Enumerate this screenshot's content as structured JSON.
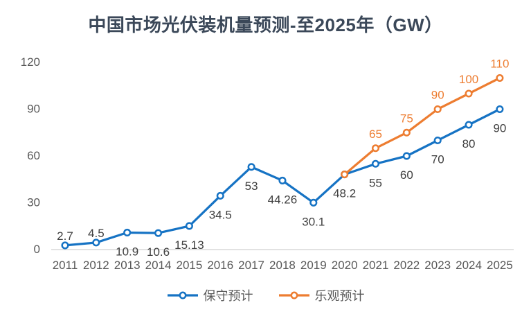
{
  "chart_data": {
    "type": "line",
    "title": "中国市场光伏装机量预测-至2025年（GW）",
    "xlabel": "",
    "ylabel": "",
    "categories": [
      "2011",
      "2012",
      "2013",
      "2014",
      "2015",
      "2016",
      "2017",
      "2018",
      "2019",
      "2020",
      "2021",
      "2022",
      "2023",
      "2024",
      "2025"
    ],
    "ylim": [
      0,
      120
    ],
    "yticks": [
      0,
      30,
      60,
      90,
      120
    ],
    "grid": false,
    "legend_position": "bottom",
    "axis_text_color": "#595959",
    "baseline_color": "#D9D9D9",
    "title_color": "#3B4859",
    "series": [
      {
        "name": "保守预计",
        "color": "#1673C4",
        "label_color": "#404040",
        "values": [
          2.7,
          4.5,
          10.9,
          10.6,
          15.13,
          34.5,
          53,
          44.26,
          30.1,
          48.2,
          55,
          60,
          70,
          80,
          90
        ],
        "labels": [
          "2.7",
          "4.5",
          "10.9",
          "10.6",
          "15.13",
          "34.5",
          "53",
          "44.26",
          "30.1",
          "48.2",
          "55",
          "60",
          "70",
          "80",
          "90"
        ],
        "label_sides": [
          "above",
          "above",
          "below",
          "below",
          "below",
          "below",
          "below",
          "below",
          "below",
          "below",
          "below",
          "below",
          "below",
          "below",
          "below"
        ]
      },
      {
        "name": "乐观预计",
        "color": "#ED7D31",
        "label_color": "#ED7D31",
        "values": [
          null,
          null,
          null,
          null,
          null,
          null,
          null,
          null,
          null,
          48.2,
          65,
          75,
          90,
          100,
          110
        ],
        "labels": [
          null,
          null,
          null,
          null,
          null,
          null,
          null,
          null,
          null,
          null,
          "65",
          "75",
          "90",
          "100",
          "110"
        ],
        "label_sides": [
          "above",
          "above",
          "above",
          "above",
          "above",
          "above",
          "above",
          "above",
          "above",
          "above",
          "above",
          "above",
          "above",
          "above",
          "above"
        ]
      }
    ]
  }
}
